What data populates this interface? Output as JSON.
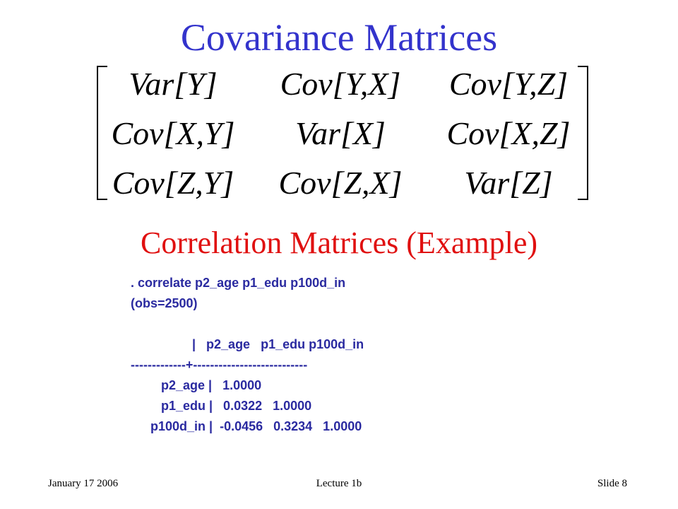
{
  "title": "Covariance Matrices",
  "matrix": [
    [
      "Var[Y]",
      "Cov[Y,X]",
      "Cov[Y,Z]"
    ],
    [
      "Cov[X,Y]",
      "Var[X]",
      "Cov[X,Z]"
    ],
    [
      "Cov[Z,Y]",
      "Cov[Z,X]",
      "Var[Z]"
    ]
  ],
  "subtitle": "Correlation Matrices (Example)",
  "output": [
    ". correlate p2_age p1_edu p100d_in",
    "(obs=2500)",
    "|   p2_age   p1_edu p100d_in",
    "-------------+---------------------------",
    "p2_age |   1.0000",
    "p1_edu |   0.0322   1.0000",
    "p100d_in |  -0.0456   0.3234   1.0000"
  ],
  "footer": {
    "date": "January 17 2006",
    "lecture": "Lecture 1b",
    "slide": "Slide 8"
  }
}
